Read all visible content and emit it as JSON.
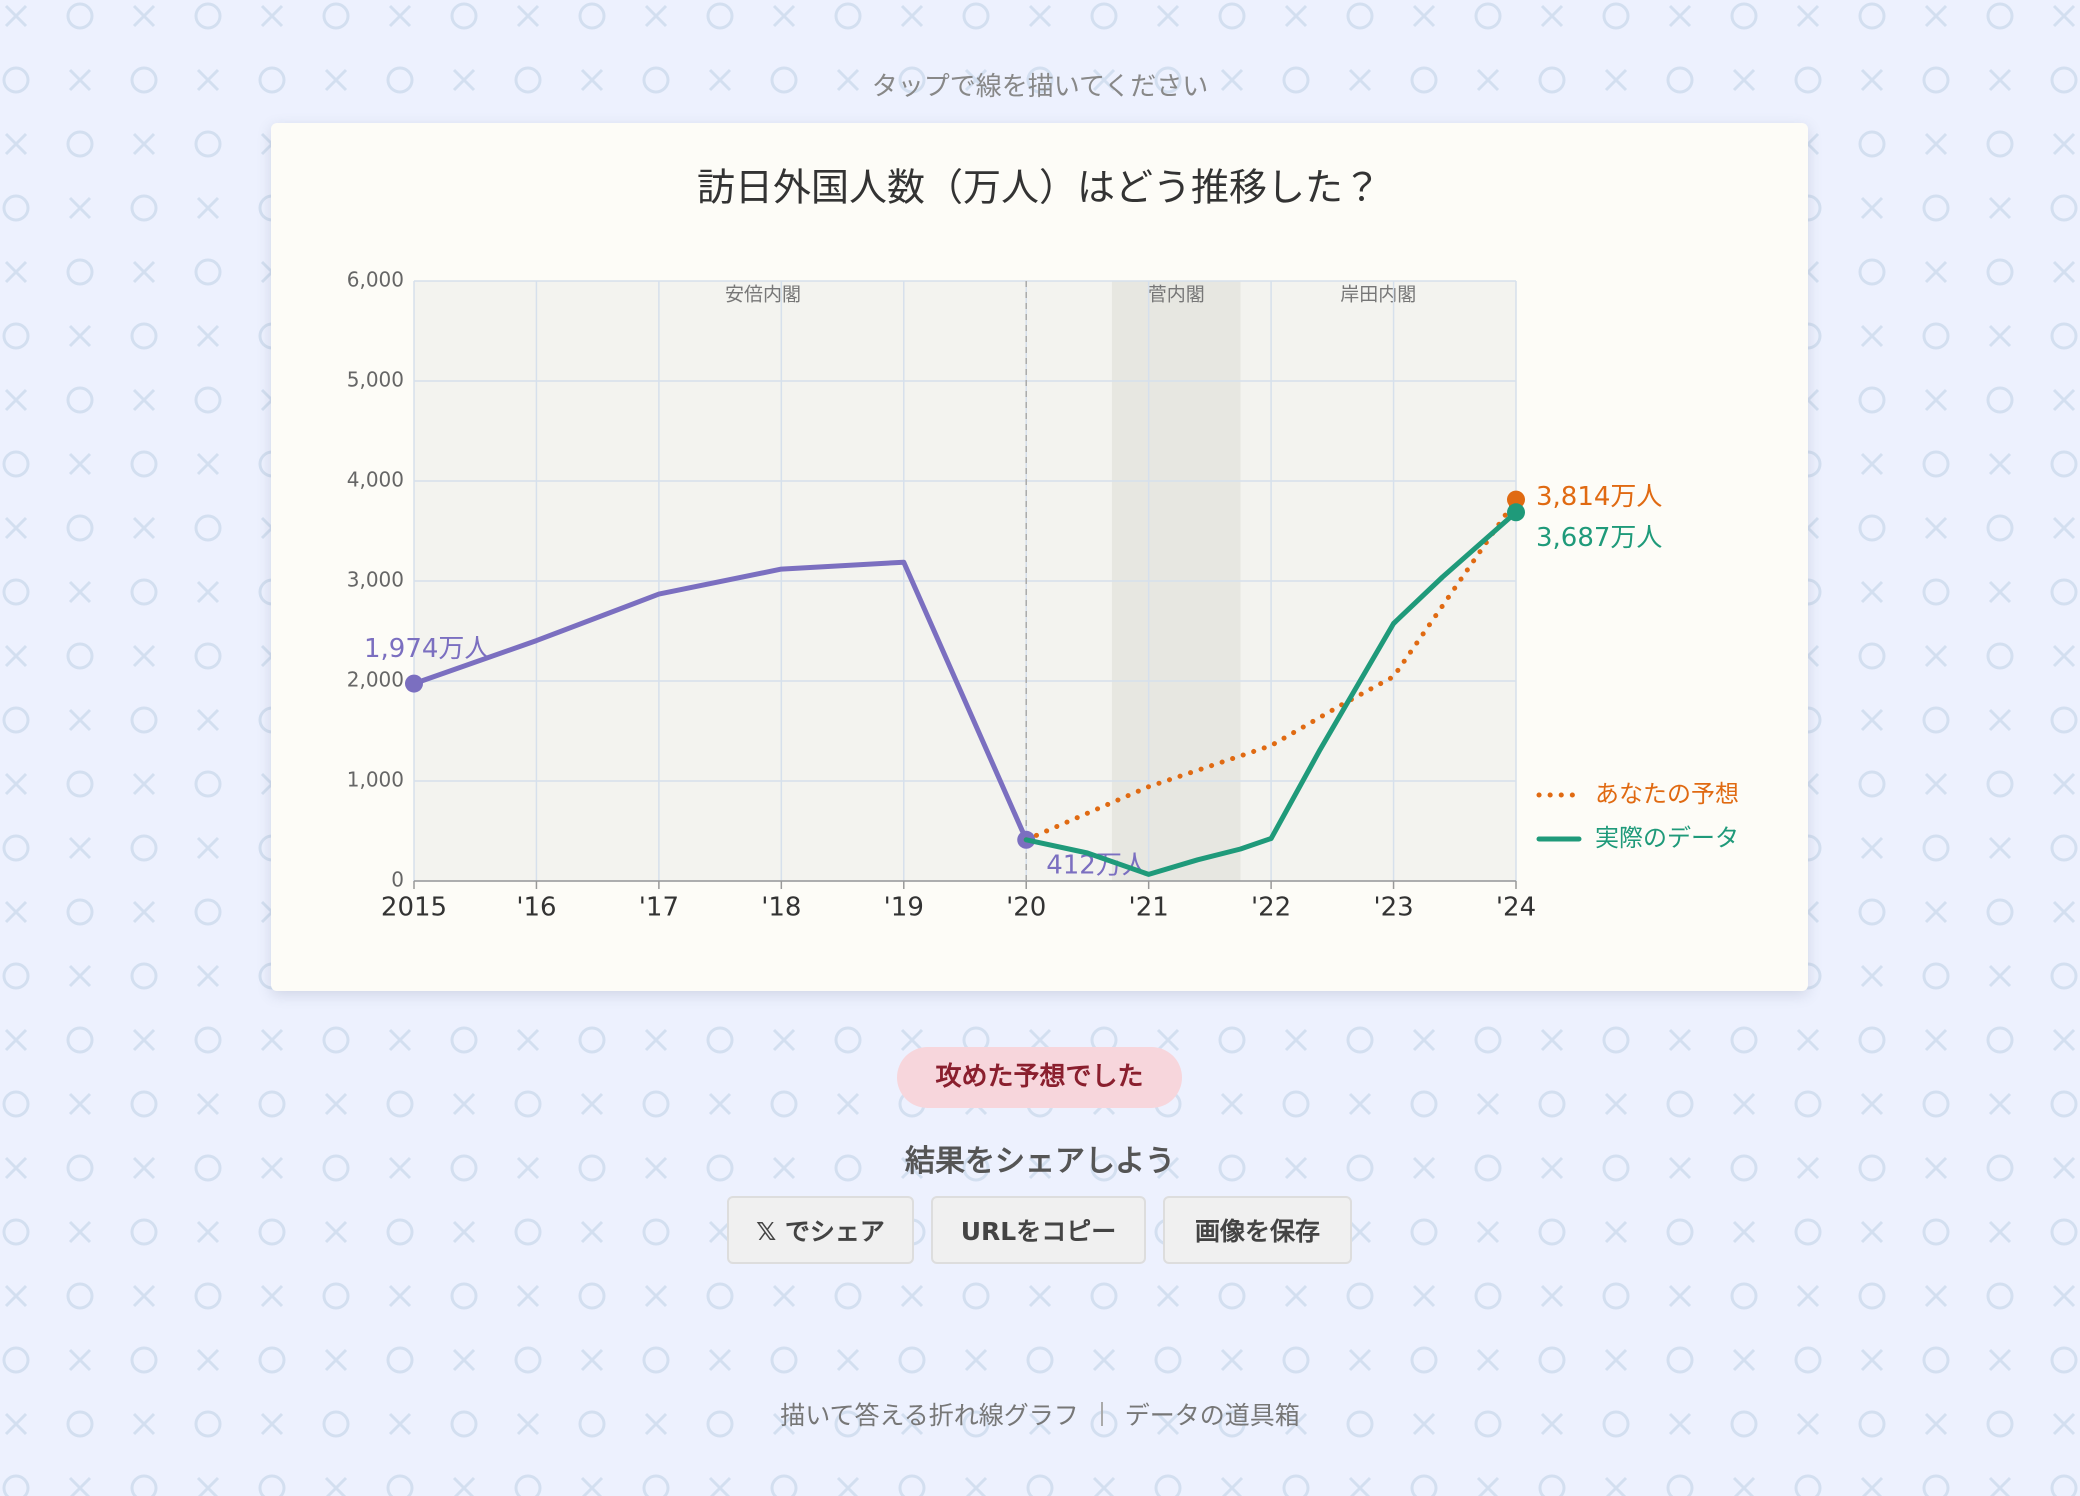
{
  "instruction": "タップで線を描いてください",
  "chart_data": {
    "type": "line",
    "title": "訪日外国人数（万人）はどう推移した？",
    "xlim": [
      2015,
      2024
    ],
    "ylim": [
      0,
      6000
    ],
    "xticks": [
      2015,
      {
        "value": 2016,
        "label": "'16"
      },
      {
        "value": 2017,
        "label": "'17"
      },
      {
        "value": 2018,
        "label": "'18"
      },
      {
        "value": 2019,
        "label": "'19"
      },
      {
        "value": 2020,
        "label": "'20"
      },
      {
        "value": 2021,
        "label": "'21"
      },
      {
        "value": 2022,
        "label": "'22"
      },
      {
        "value": 2023,
        "label": "'23"
      },
      {
        "value": 2024,
        "label": "'24"
      }
    ],
    "yticks": [
      0,
      {
        "value": 1000,
        "label": "1,000"
      },
      {
        "value": 2000,
        "label": "2,000"
      },
      {
        "value": 3000,
        "label": "3,000"
      },
      {
        "value": 4000,
        "label": "4,000"
      },
      {
        "value": 5000,
        "label": "5,000"
      },
      {
        "value": 6000,
        "label": "6,000"
      }
    ],
    "grid": true,
    "legend": "right",
    "periods": [
      {
        "label": "安倍内閣",
        "start": 2015,
        "end": 2020.7
      },
      {
        "label": "菅内閣",
        "start": 2020.7,
        "end": 2021.75,
        "shaded": true
      },
      {
        "label": "岸田内閣",
        "start": 2021.75,
        "end": 2024
      }
    ],
    "series": [
      {
        "color": "#7b6fc0",
        "style": "solid",
        "x": [
          2015,
          2016,
          2017,
          2018,
          2019,
          2020
        ],
        "values": [
          1974,
          2404,
          2869,
          3119,
          3188,
          412
        ],
        "value_labels": [
          "1,974万人",
          null,
          null,
          null,
          null,
          "412万人"
        ]
      },
      {
        "name": "あなたの予想",
        "color": "#e06a12",
        "style": "dotted",
        "x": [
          2020,
          2021,
          2022,
          2022.6,
          2023,
          2024
        ],
        "values": [
          412,
          943,
          1354,
          1779,
          2044,
          3814
        ],
        "value_labels": [
          null,
          null,
          null,
          null,
          null,
          "3,814万人"
        ]
      },
      {
        "name": "実際のデータ",
        "color": "#1f9a7a",
        "style": "solid",
        "x": [
          2020,
          2020.5,
          2021,
          2021.4,
          2021.75,
          2022,
          2022.4,
          2023,
          2023.4,
          2024
        ],
        "values": [
          412,
          280,
          66,
          212,
          320,
          425,
          1314,
          2575,
          3040,
          3687
        ],
        "value_labels": [
          null,
          null,
          null,
          null,
          null,
          null,
          null,
          null,
          null,
          "3,687万人"
        ]
      }
    ]
  },
  "result": "攻めた予想でした",
  "share": {
    "title": "結果をシェアしよう",
    "buttons": [
      "𝕏 でシェア",
      "URLをコピー",
      "画像を保存"
    ]
  },
  "footer": [
    "描いて答える折れ線グラフ",
    "データの道具箱"
  ]
}
